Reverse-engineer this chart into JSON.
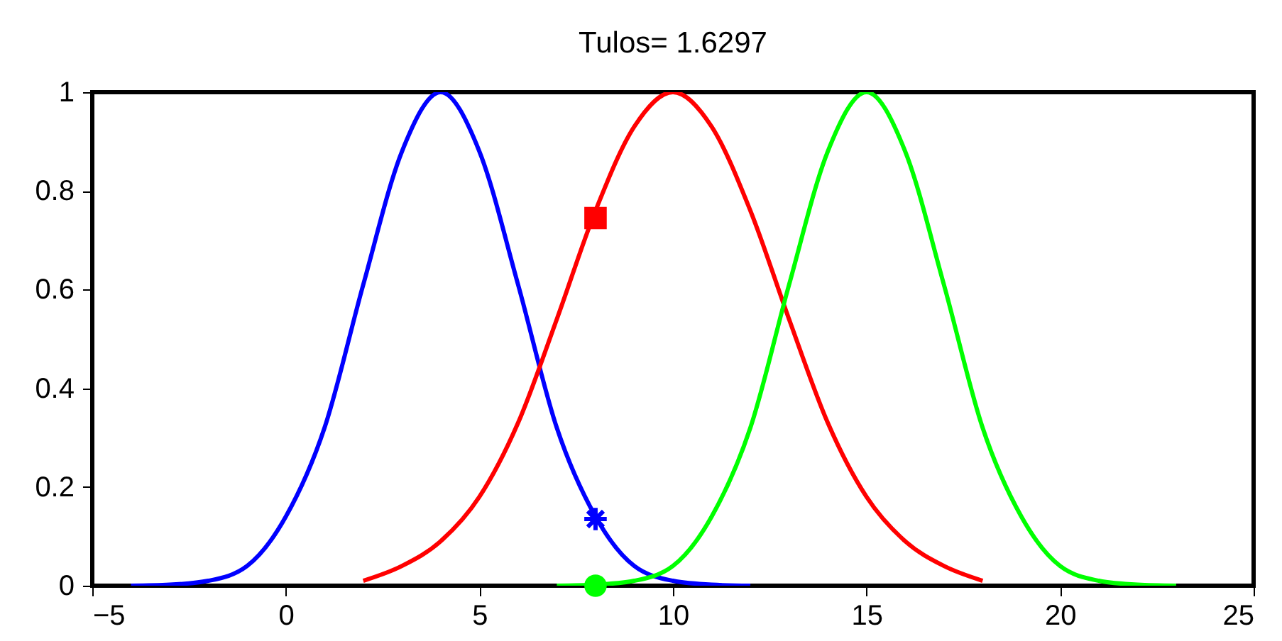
{
  "chart_data": {
    "type": "line",
    "title": "Tulos= 1.6297",
    "xlim": [
      -5,
      25
    ],
    "xticks": [
      -5,
      0,
      5,
      10,
      15,
      20,
      25
    ],
    "ylim": [
      0,
      1
    ],
    "yticks": [
      0,
      0.2,
      0.4,
      0.6,
      0.8,
      1
    ],
    "grid": false,
    "series": [
      {
        "color": "#0000ff",
        "x": [
          -4,
          -3,
          -2,
          -1,
          0,
          1,
          2,
          3,
          4,
          5,
          6,
          7,
          8,
          9,
          10,
          11,
          12
        ],
        "values": [
          0,
          0.002,
          0.01,
          0.04,
          0.14,
          0.32,
          0.61,
          0.88,
          1,
          0.88,
          0.61,
          0.32,
          0.14,
          0.04,
          0.01,
          0.002,
          0
        ]
      },
      {
        "color": "#ff0000",
        "x": [
          2,
          3,
          4,
          5,
          6,
          7,
          8,
          9,
          10,
          11,
          12,
          13,
          14,
          15,
          16,
          17,
          18
        ],
        "values": [
          0.01,
          0.04,
          0.09,
          0.18,
          0.33,
          0.54,
          0.76,
          0.93,
          1,
          0.93,
          0.76,
          0.54,
          0.33,
          0.18,
          0.09,
          0.04,
          0.01
        ]
      },
      {
        "color": "#00ff00",
        "x": [
          7,
          8,
          9,
          10,
          11,
          12,
          13,
          14,
          15,
          16,
          17,
          18,
          19,
          20,
          21,
          22,
          23
        ],
        "values": [
          0,
          0.002,
          0.01,
          0.04,
          0.14,
          0.32,
          0.61,
          0.88,
          1,
          0.88,
          0.61,
          0.32,
          0.14,
          0.04,
          0.01,
          0.002,
          0
        ]
      },
      {
        "type": "scatter",
        "marker": "cross",
        "color": "#0000ff",
        "x": [
          8
        ],
        "values": [
          0.135
        ]
      },
      {
        "type": "scatter",
        "marker": "square",
        "color": "#ff0000",
        "x": [
          8
        ],
        "values": [
          0.745
        ]
      },
      {
        "type": "scatter",
        "marker": "circle",
        "color": "#00ff00",
        "x": [
          8
        ],
        "values": [
          0
        ]
      }
    ]
  }
}
